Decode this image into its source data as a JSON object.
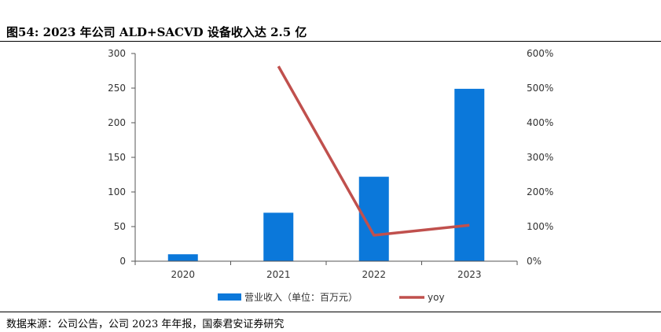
{
  "figure": {
    "title": "图54:  2023 年公司 ALD+SACVD 设备收入达 2.5 亿",
    "source": "数据来源：公司公告，公司 2023 年年报，国泰君安证券研究"
  },
  "chart_data": {
    "type": "bar",
    "title": "",
    "categories": [
      "2020",
      "2021",
      "2022",
      "2023"
    ],
    "series": [
      {
        "name": "营业收入（单位：百万元）",
        "type": "bar",
        "axis": "left",
        "color": "#0B78DA",
        "values": [
          10,
          70,
          122,
          249
        ]
      },
      {
        "name": "yoy",
        "type": "line",
        "axis": "right",
        "color": "#C0504D",
        "values": [
          null,
          563,
          75,
          104
        ]
      }
    ],
    "y_left": {
      "ticks": [
        "0",
        "50",
        "100",
        "150",
        "200",
        "250",
        "300"
      ],
      "lim": [
        0,
        300
      ]
    },
    "y_right": {
      "ticks": [
        "0%",
        "100%",
        "200%",
        "300%",
        "400%",
        "500%",
        "600%"
      ],
      "lim": [
        0,
        600
      ]
    },
    "grid": false,
    "legend": "bottom"
  }
}
